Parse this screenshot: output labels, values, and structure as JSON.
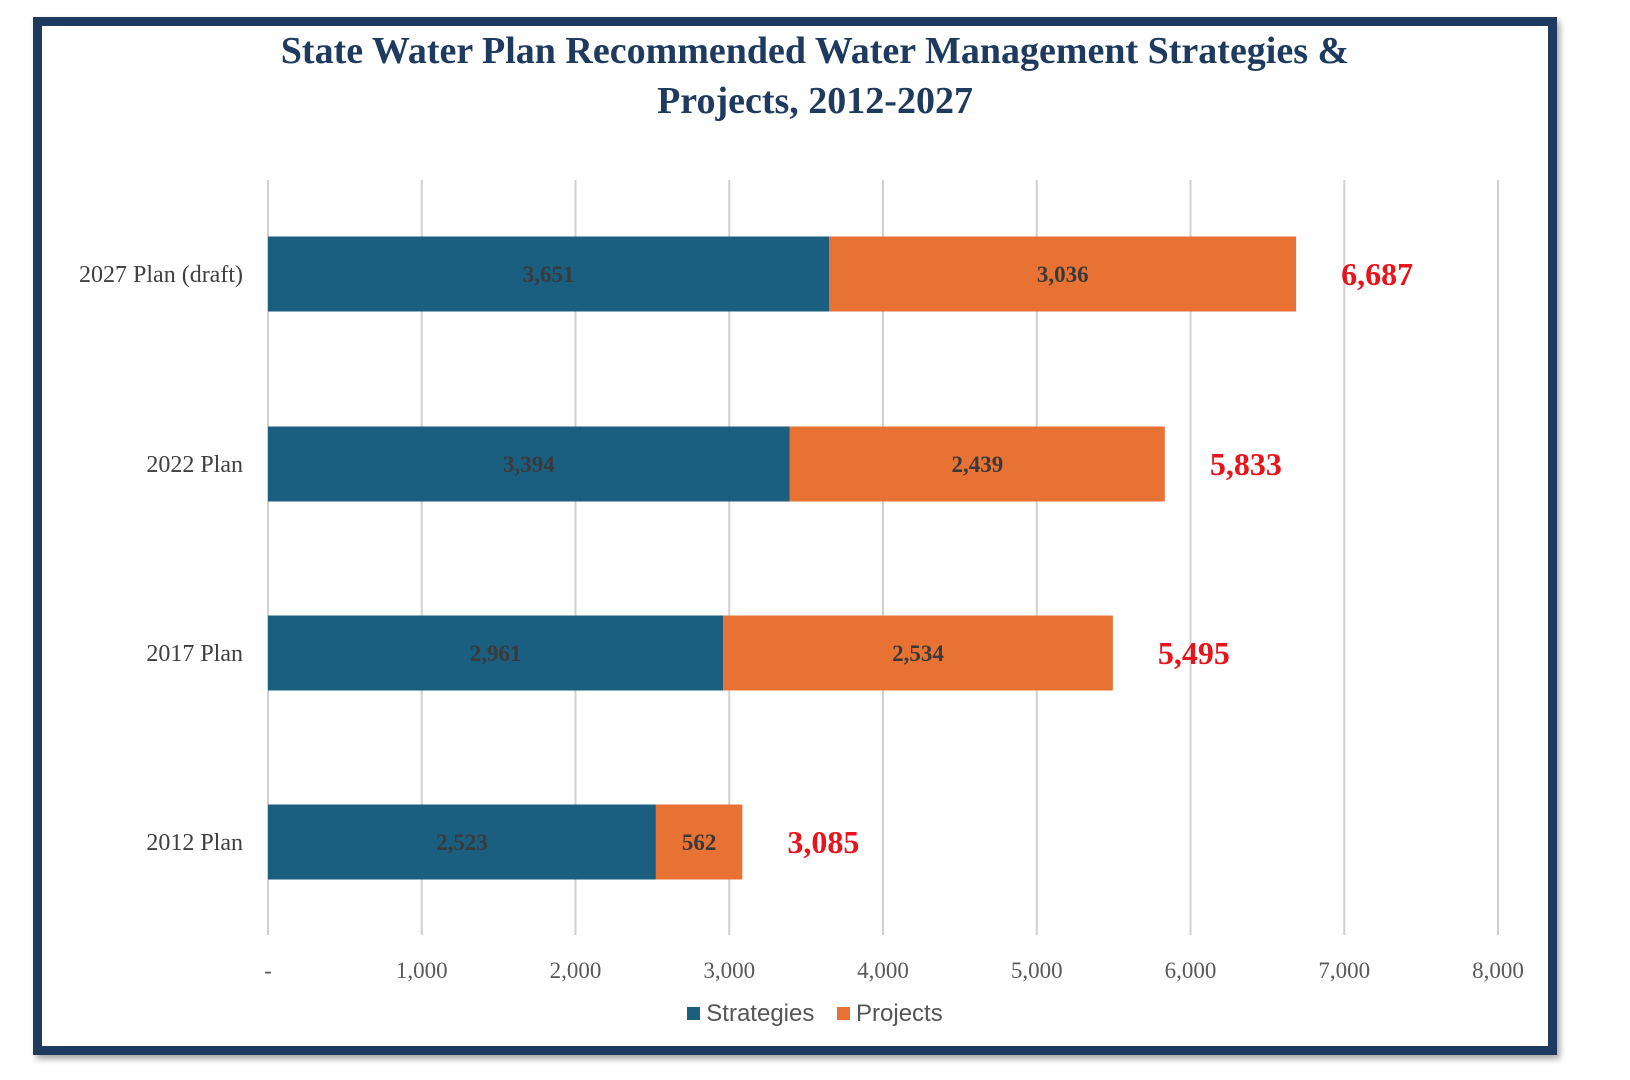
{
  "chart_data": {
    "type": "bar",
    "orientation": "horizontal",
    "stacked": true,
    "title_lines": [
      "State Water Plan Recommended Water Management Strategies &",
      "Projects, 2012-2027"
    ],
    "categories": [
      "2027 Plan (draft)",
      "2022 Plan",
      "2017 Plan",
      "2012 Plan"
    ],
    "series": [
      {
        "name": "Strategies",
        "color": "#1a5e80",
        "values": [
          3651,
          3394,
          2961,
          2523
        ],
        "labels": [
          "3,651",
          "3,394",
          "2,961",
          "2,523"
        ]
      },
      {
        "name": "Projects",
        "color": "#e87234",
        "values": [
          3036,
          2439,
          2534,
          562
        ],
        "labels": [
          "3,036",
          "2,439",
          "2,534",
          "562"
        ]
      }
    ],
    "totals": [
      6687,
      5833,
      5495,
      3085
    ],
    "total_labels": [
      "6,687",
      "5,833",
      "5,495",
      "3,085"
    ],
    "total_label_color": "#e8141c",
    "xlim": [
      0,
      8000
    ],
    "xticks": [
      0,
      1000,
      2000,
      3000,
      4000,
      5000,
      6000,
      7000,
      8000
    ],
    "xtick_labels": [
      "-",
      "1,000",
      "2,000",
      "3,000",
      "4,000",
      "5,000",
      "6,000",
      "7,000",
      "8,000"
    ],
    "grid": "vertical",
    "legend_position": "bottom"
  }
}
